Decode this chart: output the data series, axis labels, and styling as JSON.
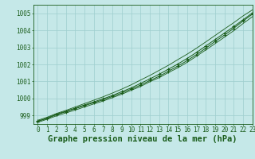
{
  "title": "Graphe pression niveau de la mer (hPa)",
  "background_color": "#c5e8e8",
  "grid_color": "#9ecece",
  "line_color": "#1a5c1a",
  "marker_color": "#1a5c1a",
  "xlim": [
    -0.5,
    23
  ],
  "ylim": [
    998.5,
    1005.5
  ],
  "yticks": [
    999,
    1000,
    1001,
    1002,
    1003,
    1004,
    1005
  ],
  "xticks": [
    0,
    1,
    2,
    3,
    4,
    5,
    6,
    7,
    8,
    9,
    10,
    11,
    12,
    13,
    14,
    15,
    16,
    17,
    18,
    19,
    20,
    21,
    22,
    23
  ],
  "series": [
    [
      998.68,
      998.82,
      999.05,
      999.22,
      999.4,
      999.58,
      999.75,
      999.92,
      1000.12,
      1000.32,
      1000.55,
      1000.78,
      1001.05,
      1001.3,
      1001.6,
      1001.9,
      1002.22,
      1002.58,
      1002.95,
      1003.35,
      1003.72,
      1004.12,
      1004.55,
      1004.95
    ],
    [
      998.72,
      998.9,
      999.12,
      999.3,
      999.5,
      999.7,
      999.9,
      1000.1,
      1000.32,
      1000.55,
      1000.8,
      1001.08,
      1001.35,
      1001.65,
      1001.95,
      1002.28,
      1002.6,
      1002.95,
      1003.32,
      1003.7,
      1004.08,
      1004.45,
      1004.85,
      1005.2
    ],
    [
      998.6,
      998.78,
      998.98,
      999.15,
      999.32,
      999.5,
      999.68,
      999.85,
      1000.05,
      1000.25,
      1000.48,
      1000.7,
      1000.98,
      1001.22,
      1001.52,
      1001.8,
      1002.12,
      1002.48,
      1002.85,
      1003.22,
      1003.6,
      1003.98,
      1004.4,
      1004.8
    ],
    [
      998.65,
      998.85,
      999.08,
      999.25,
      999.43,
      999.62,
      999.8,
      999.98,
      1000.18,
      1000.4,
      1000.62,
      1000.88,
      1001.15,
      1001.42,
      1001.72,
      1002.02,
      1002.35,
      1002.7,
      1003.08,
      1003.46,
      1003.84,
      1004.22,
      1004.62,
      1005.02
    ]
  ],
  "marker_indices": [
    0,
    3,
    6,
    9,
    12,
    15,
    18,
    21
  ],
  "marker_series": [
    0,
    3
  ],
  "title_color": "#1a5c1a",
  "title_fontsize": 7.5,
  "tick_fontsize": 5.5,
  "tick_color": "#1a5c1a",
  "axis_color": "#1a5c1a"
}
